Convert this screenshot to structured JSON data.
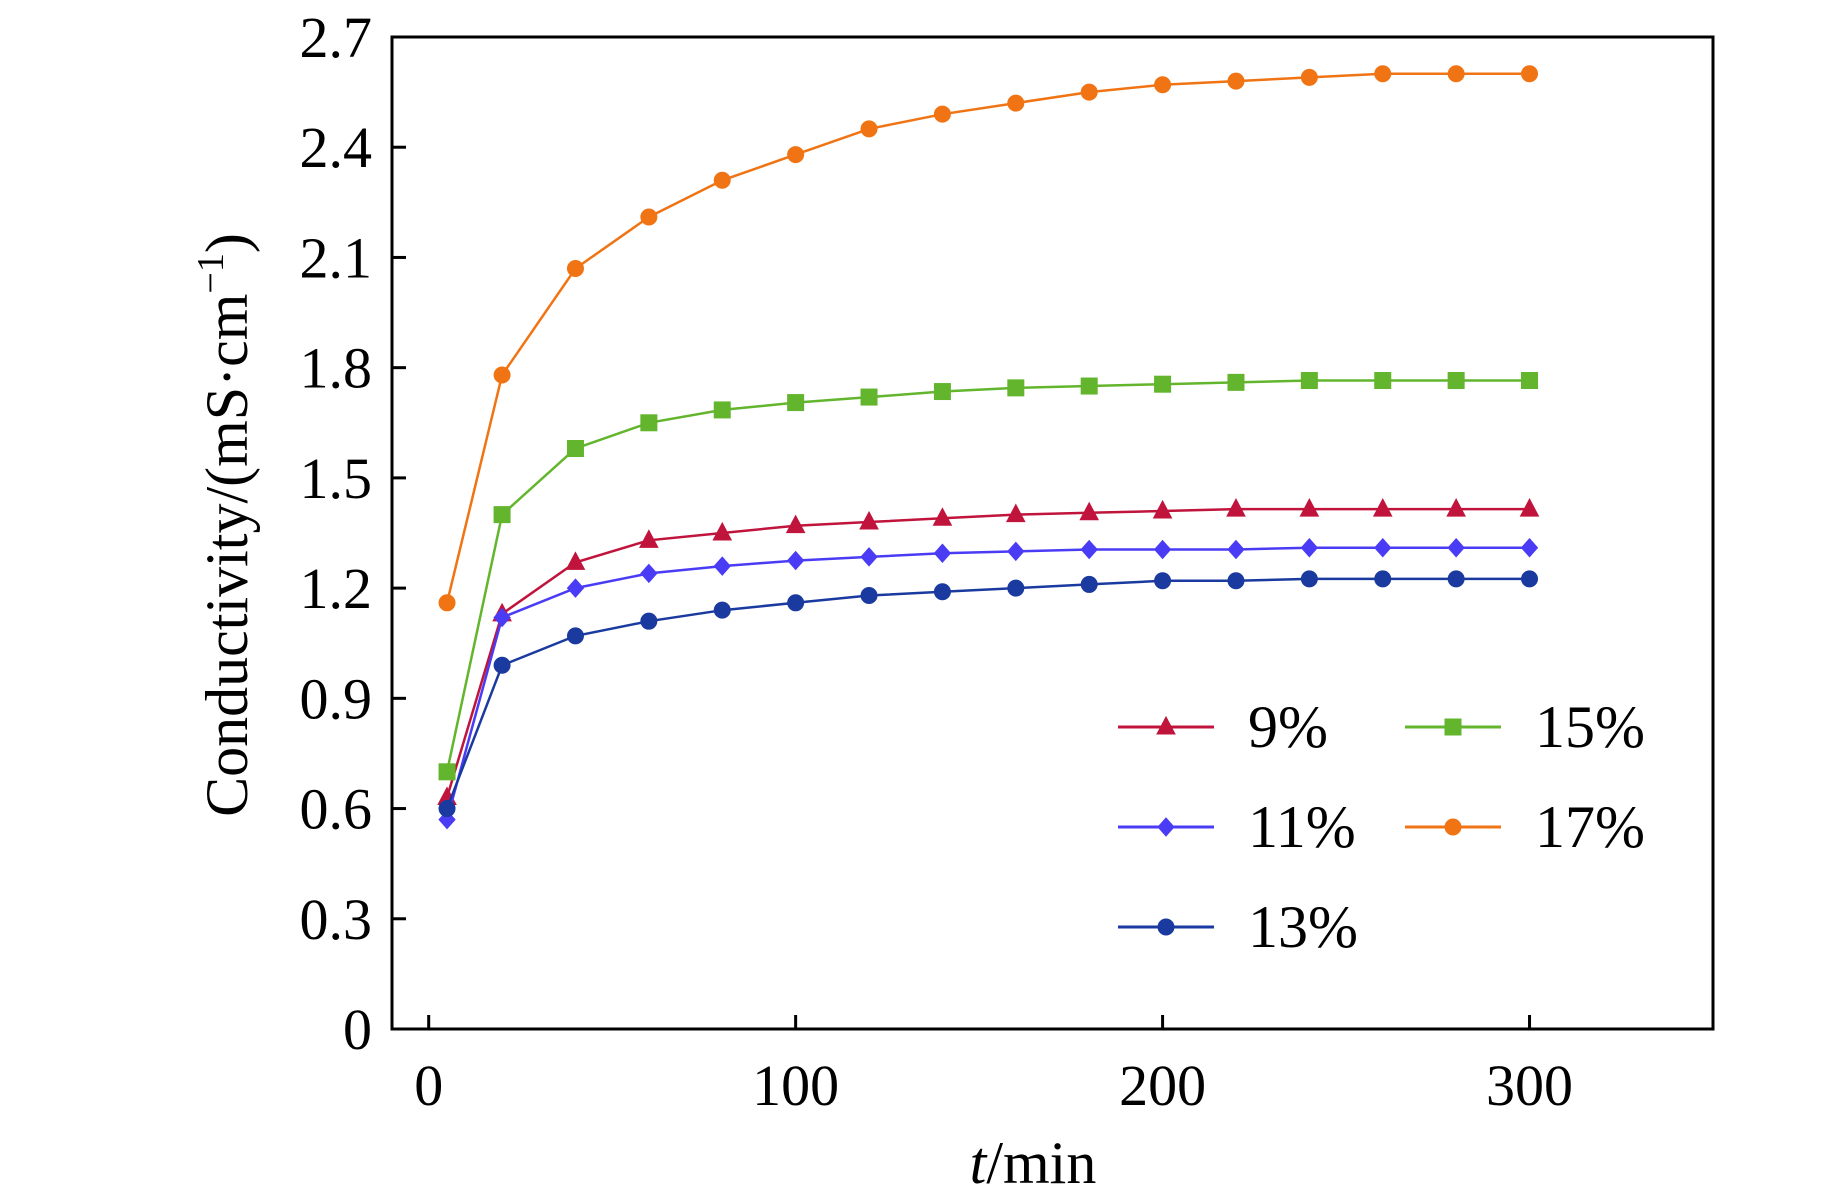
{
  "chart_data": {
    "type": "line",
    "xlabel_italic": "t",
    "xlabel_rest": "/min",
    "ylabel": "Conductivity/(mS·cm",
    "ylabel_sup": "−1",
    "ylabel_close": ")",
    "xlim": [
      -10,
      350
    ],
    "ylim": [
      0,
      2.7
    ],
    "xticks": [
      0,
      100,
      200,
      300
    ],
    "xtick_labels": [
      "0",
      "100",
      "200",
      "300"
    ],
    "yticks": [
      0,
      0.3,
      0.6,
      0.9,
      1.2,
      1.5,
      1.8,
      2.1,
      2.4,
      2.7
    ],
    "ytick_labels": [
      "0",
      "0.3",
      "0.6",
      "0.9",
      "1.2",
      "1.5",
      "1.8",
      "2.1",
      "2.4",
      "2.7"
    ],
    "grid": false,
    "legend_position": "bottom-right",
    "x": [
      5,
      20,
      40,
      60,
      80,
      100,
      120,
      140,
      160,
      180,
      200,
      220,
      240,
      260,
      280,
      300
    ],
    "series": [
      {
        "name": "9%",
        "color": "#c0143c",
        "marker": "triangle",
        "values": [
          0.63,
          1.13,
          1.27,
          1.33,
          1.35,
          1.37,
          1.38,
          1.39,
          1.4,
          1.405,
          1.41,
          1.415,
          1.415,
          1.415,
          1.415,
          1.415
        ]
      },
      {
        "name": "11%",
        "color": "#4a3cf5",
        "marker": "diamond",
        "values": [
          0.57,
          1.12,
          1.2,
          1.24,
          1.26,
          1.275,
          1.285,
          1.295,
          1.3,
          1.305,
          1.305,
          1.305,
          1.31,
          1.31,
          1.31,
          1.31
        ]
      },
      {
        "name": "13%",
        "color": "#1a3aa0",
        "marker": "circle",
        "values": [
          0.6,
          0.99,
          1.07,
          1.11,
          1.14,
          1.16,
          1.18,
          1.19,
          1.2,
          1.21,
          1.22,
          1.22,
          1.225,
          1.225,
          1.225,
          1.225
        ]
      },
      {
        "name": "15%",
        "color": "#62b52c",
        "marker": "square",
        "values": [
          0.7,
          1.4,
          1.58,
          1.65,
          1.685,
          1.705,
          1.72,
          1.735,
          1.745,
          1.75,
          1.755,
          1.76,
          1.765,
          1.765,
          1.765,
          1.765
        ]
      },
      {
        "name": "17%",
        "color": "#f07414",
        "marker": "circle",
        "values": [
          1.16,
          1.78,
          2.07,
          2.21,
          2.31,
          2.38,
          2.45,
          2.49,
          2.52,
          2.55,
          2.57,
          2.58,
          2.59,
          2.6,
          2.6,
          2.6
        ]
      }
    ]
  }
}
